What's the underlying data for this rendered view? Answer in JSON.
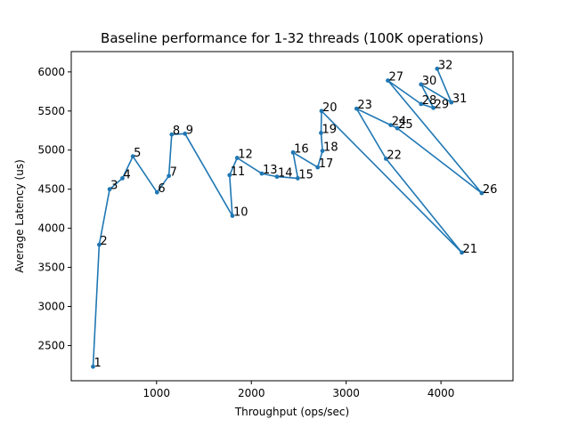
{
  "chart_data": {
    "type": "line",
    "title": "Baseline performance for 1-32 threads (100K operations)",
    "xlabel": "Throughput (ops/sec)",
    "ylabel": "Average Latency (us)",
    "xlim": [
      100,
      4760
    ],
    "ylim": [
      2050,
      6260
    ],
    "xticks": [
      1000,
      2000,
      3000,
      4000
    ],
    "yticks": [
      2500,
      3000,
      3500,
      4000,
      4500,
      5000,
      5500,
      6000
    ],
    "grid": false,
    "line_color": "#1f77b4",
    "points": [
      {
        "label": "1",
        "x": 330,
        "y": 2230
      },
      {
        "label": "2",
        "x": 395,
        "y": 3790
      },
      {
        "label": "3",
        "x": 505,
        "y": 4500
      },
      {
        "label": "4",
        "x": 640,
        "y": 4640
      },
      {
        "label": "5",
        "x": 750,
        "y": 4920
      },
      {
        "label": "6",
        "x": 1005,
        "y": 4460
      },
      {
        "label": "7",
        "x": 1130,
        "y": 4670
      },
      {
        "label": "8",
        "x": 1160,
        "y": 5200
      },
      {
        "label": "9",
        "x": 1300,
        "y": 5210
      },
      {
        "label": "10",
        "x": 1800,
        "y": 4160
      },
      {
        "label": "11",
        "x": 1770,
        "y": 4680
      },
      {
        "label": "12",
        "x": 1850,
        "y": 4900
      },
      {
        "label": "13",
        "x": 2110,
        "y": 4700
      },
      {
        "label": "14",
        "x": 2270,
        "y": 4660
      },
      {
        "label": "15",
        "x": 2490,
        "y": 4640
      },
      {
        "label": "16",
        "x": 2440,
        "y": 4970
      },
      {
        "label": "17",
        "x": 2700,
        "y": 4780
      },
      {
        "label": "18",
        "x": 2750,
        "y": 4990
      },
      {
        "label": "19",
        "x": 2735,
        "y": 5220
      },
      {
        "label": "20",
        "x": 2740,
        "y": 5500
      },
      {
        "label": "21",
        "x": 4220,
        "y": 3690
      },
      {
        "label": "22",
        "x": 3420,
        "y": 4890
      },
      {
        "label": "23",
        "x": 3110,
        "y": 5530
      },
      {
        "label": "24",
        "x": 3470,
        "y": 5320
      },
      {
        "label": "25",
        "x": 3540,
        "y": 5280
      },
      {
        "label": "26",
        "x": 4430,
        "y": 4450
      },
      {
        "label": "27",
        "x": 3440,
        "y": 5890
      },
      {
        "label": "28",
        "x": 3790,
        "y": 5590
      },
      {
        "label": "29",
        "x": 3920,
        "y": 5540
      },
      {
        "label": "30",
        "x": 3790,
        "y": 5840
      },
      {
        "label": "31",
        "x": 4110,
        "y": 5610
      },
      {
        "label": "32",
        "x": 3960,
        "y": 6040
      }
    ]
  }
}
